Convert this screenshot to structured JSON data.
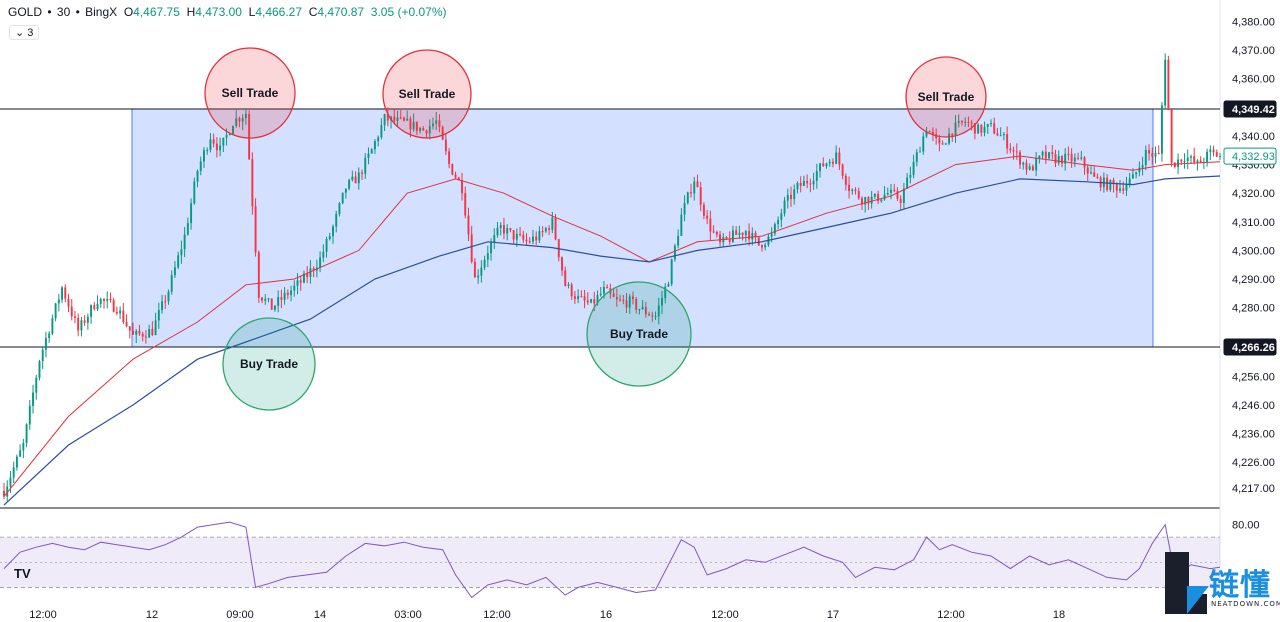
{
  "header": {
    "symbol": "GOLD",
    "interval": "30",
    "exchange": "BingX",
    "open_label": "O",
    "open": "4,467.75",
    "high_label": "H",
    "high": "4,473.00",
    "low_label": "L",
    "low": "4,466.27",
    "close_label": "C",
    "close": "4,470.87",
    "change": "3.05 (+0.07%)",
    "indicators_count": "3"
  },
  "chart_data": {
    "type": "candlestick",
    "ylim": [
      4210,
      4384
    ],
    "y_ticks": [
      "4,380.00",
      "4,370.00",
      "4,360.00",
      "4,340.00",
      "4,330.00",
      "4,320.00",
      "4,310.00",
      "4,300.00",
      "4,290.00",
      "4,280.00",
      "4,266.26",
      "4,256.00",
      "4,246.00",
      "4,236.00",
      "4,226.00",
      "4,217.00"
    ],
    "y_tick_values": [
      4380,
      4370,
      4360,
      4340,
      4330,
      4320,
      4310,
      4300,
      4290,
      4280,
      4266.26,
      4256,
      4246,
      4236,
      4226,
      4217
    ],
    "x_ticks": [
      "12:00",
      "12",
      "09:00",
      "14",
      "03:00",
      "12:00",
      "16",
      "12:00",
      "17",
      "12:00",
      "18"
    ],
    "levels": [
      {
        "label": "4,349.42",
        "value": 4349.42,
        "style": "dark"
      },
      {
        "label": "4,266.26",
        "value": 4266.26,
        "style": "dark"
      },
      {
        "label": "4,332.93",
        "value": 4332.93,
        "style": "green"
      }
    ],
    "range_box": {
      "high": 4349.42,
      "low": 4266.26
    },
    "annotations": [
      {
        "text": "Sell Trade",
        "kind": "sell"
      },
      {
        "text": "Sell Trade",
        "kind": "sell"
      },
      {
        "text": "Sell Trade",
        "kind": "sell"
      },
      {
        "text": "Buy Trade",
        "kind": "buy"
      },
      {
        "text": "Buy Trade",
        "kind": "buy"
      }
    ],
    "close_path": [
      [
        0,
        4216
      ],
      [
        6,
        4232
      ],
      [
        11,
        4262
      ],
      [
        18,
        4287
      ],
      [
        23,
        4272
      ],
      [
        29,
        4283
      ],
      [
        35,
        4280
      ],
      [
        40,
        4270
      ],
      [
        46,
        4272
      ],
      [
        51,
        4286
      ],
      [
        56,
        4305
      ],
      [
        60,
        4328
      ],
      [
        64,
        4340
      ],
      [
        67,
        4335
      ],
      [
        71,
        4345
      ],
      [
        75,
        4348
      ],
      [
        79,
        4285
      ],
      [
        83,
        4280
      ],
      [
        88,
        4285
      ],
      [
        93,
        4290
      ],
      [
        98,
        4297
      ],
      [
        102,
        4308
      ],
      [
        106,
        4322
      ],
      [
        110,
        4326
      ],
      [
        114,
        4335
      ],
      [
        118,
        4346
      ],
      [
        122,
        4345
      ],
      [
        126,
        4344
      ],
      [
        130,
        4342
      ],
      [
        134,
        4345
      ],
      [
        138,
        4330
      ],
      [
        142,
        4322
      ],
      [
        146,
        4290
      ],
      [
        150,
        4300
      ],
      [
        154,
        4308
      ],
      [
        158,
        4305
      ],
      [
        162,
        4303
      ],
      [
        166,
        4305
      ],
      [
        170,
        4310
      ],
      [
        174,
        4288
      ],
      [
        178,
        4283
      ],
      [
        182,
        4281
      ],
      [
        186,
        4286
      ],
      [
        190,
        4282
      ],
      [
        194,
        4282
      ],
      [
        198,
        4279
      ],
      [
        202,
        4277
      ],
      [
        206,
        4290
      ],
      [
        210,
        4312
      ],
      [
        214,
        4325
      ],
      [
        218,
        4310
      ],
      [
        222,
        4302
      ],
      [
        226,
        4305
      ],
      [
        230,
        4307
      ],
      [
        234,
        4302
      ],
      [
        238,
        4305
      ],
      [
        242,
        4316
      ],
      [
        246,
        4322
      ],
      [
        250,
        4325
      ],
      [
        254,
        4330
      ],
      [
        258,
        4333
      ],
      [
        262,
        4322
      ],
      [
        266,
        4318
      ],
      [
        270,
        4318
      ],
      [
        274,
        4320
      ],
      [
        278,
        4318
      ],
      [
        282,
        4330
      ],
      [
        286,
        4343
      ],
      [
        290,
        4336
      ],
      [
        294,
        4342
      ],
      [
        298,
        4345
      ],
      [
        302,
        4342
      ],
      [
        306,
        4343
      ],
      [
        310,
        4339
      ],
      [
        314,
        4333
      ],
      [
        318,
        4328
      ],
      [
        322,
        4333
      ],
      [
        326,
        4332
      ],
      [
        330,
        4332
      ],
      [
        334,
        4331
      ],
      [
        338,
        4325
      ],
      [
        342,
        4323
      ],
      [
        346,
        4322
      ],
      [
        350,
        4325
      ],
      [
        354,
        4334
      ],
      [
        358,
        4333
      ],
      [
        360,
        4368
      ],
      [
        362,
        4330
      ],
      [
        366,
        4333
      ],
      [
        370,
        4330
      ],
      [
        374,
        4334
      ],
      [
        377,
        4333
      ]
    ],
    "ema_fast_path": [
      [
        0,
        4214
      ],
      [
        20,
        4242
      ],
      [
        40,
        4262
      ],
      [
        60,
        4275
      ],
      [
        75,
        4288
      ],
      [
        90,
        4290
      ],
      [
        110,
        4300
      ],
      [
        125,
        4320
      ],
      [
        140,
        4325
      ],
      [
        155,
        4320
      ],
      [
        170,
        4312
      ],
      [
        185,
        4305
      ],
      [
        200,
        4296
      ],
      [
        215,
        4303
      ],
      [
        235,
        4305
      ],
      [
        255,
        4313
      ],
      [
        275,
        4319
      ],
      [
        295,
        4330
      ],
      [
        315,
        4333
      ],
      [
        335,
        4330
      ],
      [
        350,
        4328
      ],
      [
        360,
        4330
      ],
      [
        377,
        4331
      ]
    ],
    "ema_slow_path": [
      [
        0,
        4211
      ],
      [
        20,
        4232
      ],
      [
        40,
        4246
      ],
      [
        60,
        4262
      ],
      [
        75,
        4268
      ],
      [
        95,
        4276
      ],
      [
        115,
        4290
      ],
      [
        135,
        4298
      ],
      [
        150,
        4303
      ],
      [
        170,
        4301
      ],
      [
        185,
        4298
      ],
      [
        200,
        4296
      ],
      [
        215,
        4300
      ],
      [
        235,
        4303
      ],
      [
        255,
        4308
      ],
      [
        275,
        4313
      ],
      [
        295,
        4320
      ],
      [
        315,
        4325
      ],
      [
        335,
        4324
      ],
      [
        350,
        4323
      ],
      [
        360,
        4325
      ],
      [
        377,
        4326
      ]
    ],
    "rsi": {
      "ylim": [
        20,
        90
      ],
      "tick": "80.00",
      "tick_value": 80,
      "upper": 70,
      "lower": 30,
      "path": [
        [
          0,
          45
        ],
        [
          5,
          58
        ],
        [
          10,
          62
        ],
        [
          15,
          65
        ],
        [
          20,
          62
        ],
        [
          25,
          60
        ],
        [
          30,
          66
        ],
        [
          35,
          64
        ],
        [
          40,
          62
        ],
        [
          45,
          60
        ],
        [
          50,
          64
        ],
        [
          55,
          70
        ],
        [
          60,
          78
        ],
        [
          65,
          80
        ],
        [
          70,
          82
        ],
        [
          75,
          78
        ],
        [
          78,
          30
        ],
        [
          82,
          33
        ],
        [
          88,
          38
        ],
        [
          94,
          40
        ],
        [
          100,
          42
        ],
        [
          106,
          55
        ],
        [
          112,
          65
        ],
        [
          118,
          63
        ],
        [
          124,
          66
        ],
        [
          130,
          62
        ],
        [
          136,
          60
        ],
        [
          140,
          40
        ],
        [
          145,
          22
        ],
        [
          150,
          32
        ],
        [
          156,
          36
        ],
        [
          162,
          32
        ],
        [
          168,
          38
        ],
        [
          174,
          24
        ],
        [
          178,
          30
        ],
        [
          184,
          34
        ],
        [
          190,
          30
        ],
        [
          196,
          26
        ],
        [
          202,
          28
        ],
        [
          206,
          48
        ],
        [
          210,
          68
        ],
        [
          214,
          62
        ],
        [
          218,
          40
        ],
        [
          224,
          45
        ],
        [
          230,
          52
        ],
        [
          236,
          50
        ],
        [
          242,
          56
        ],
        [
          248,
          62
        ],
        [
          254,
          55
        ],
        [
          260,
          50
        ],
        [
          264,
          38
        ],
        [
          270,
          46
        ],
        [
          276,
          44
        ],
        [
          282,
          52
        ],
        [
          286,
          70
        ],
        [
          290,
          60
        ],
        [
          294,
          64
        ],
        [
          300,
          58
        ],
        [
          306,
          55
        ],
        [
          312,
          45
        ],
        [
          318,
          55
        ],
        [
          324,
          48
        ],
        [
          330,
          52
        ],
        [
          336,
          45
        ],
        [
          342,
          38
        ],
        [
          348,
          36
        ],
        [
          352,
          45
        ],
        [
          356,
          65
        ],
        [
          360,
          80
        ],
        [
          363,
          40
        ],
        [
          368,
          48
        ],
        [
          374,
          45
        ],
        [
          377,
          46
        ]
      ]
    }
  },
  "watermark": {
    "cn": "链懂",
    "en": "NEATDOWN.COM"
  },
  "logo": "TV"
}
